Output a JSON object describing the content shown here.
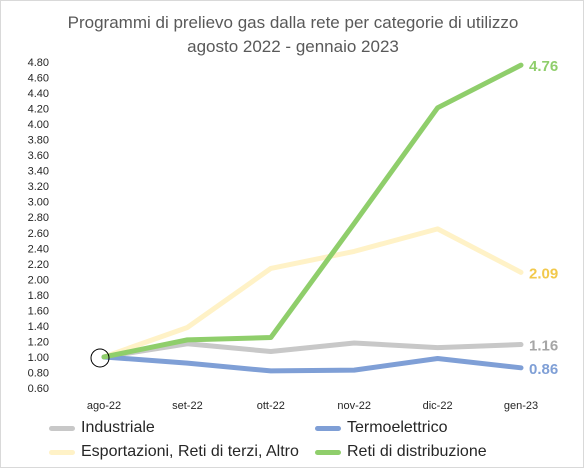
{
  "colors": {
    "Industriale": "#c8c8c8",
    "Termoelettrico": "#7f9fd6",
    "Esportazioni": "#fff2c7",
    "Reti": "#8fce6b",
    "label_Industriale": "#a6a6a6",
    "label_Termoelettrico": "#7f9fd6",
    "label_Esportazioni": "#f2c94c",
    "label_Reti": "#8fce6b"
  },
  "chart_data": {
    "type": "line",
    "title": "Programmi di prelievo gas dalla rete per categorie di utilizzo",
    "subtitle": "agosto 2022 - gennaio 2023",
    "categories": [
      "ago-22",
      "set-22",
      "ott-22",
      "nov-22",
      "dic-22",
      "gen-23"
    ],
    "ylim": [
      0.6,
      4.8
    ],
    "yticks": [
      "4.80",
      "4.60",
      "4.40",
      "4.20",
      "4.00",
      "3.80",
      "3.60",
      "3.40",
      "3.20",
      "3.00",
      "2.80",
      "2.60",
      "2.40",
      "2.20",
      "2.00",
      "1.80",
      "1.60",
      "1.40",
      "1.20",
      "1.00",
      "0.80",
      "0.60"
    ],
    "grid": false,
    "legend_position": "bottom",
    "series": [
      {
        "name": "Industriale",
        "key": "Industriale",
        "values": [
          1.0,
          1.17,
          1.07,
          1.18,
          1.12,
          1.16
        ],
        "end_label": "1.16"
      },
      {
        "name": "Termoelettrico",
        "key": "Termoelettrico",
        "values": [
          1.0,
          0.92,
          0.82,
          0.83,
          0.98,
          0.86
        ],
        "end_label": "0.86"
      },
      {
        "name": "Esportazioni, Reti di terzi, Altro",
        "key": "Esportazioni",
        "values": [
          1.0,
          1.38,
          2.14,
          2.36,
          2.65,
          2.09
        ],
        "end_label": "2.09"
      },
      {
        "name": "Reti di distribuzione",
        "key": "Reti",
        "values": [
          1.0,
          1.22,
          1.25,
          2.72,
          4.21,
          4.76
        ],
        "end_label": "4.76"
      }
    ],
    "annotations": [
      {
        "type": "circle",
        "category": "ago-22",
        "value": 1.0
      }
    ]
  }
}
